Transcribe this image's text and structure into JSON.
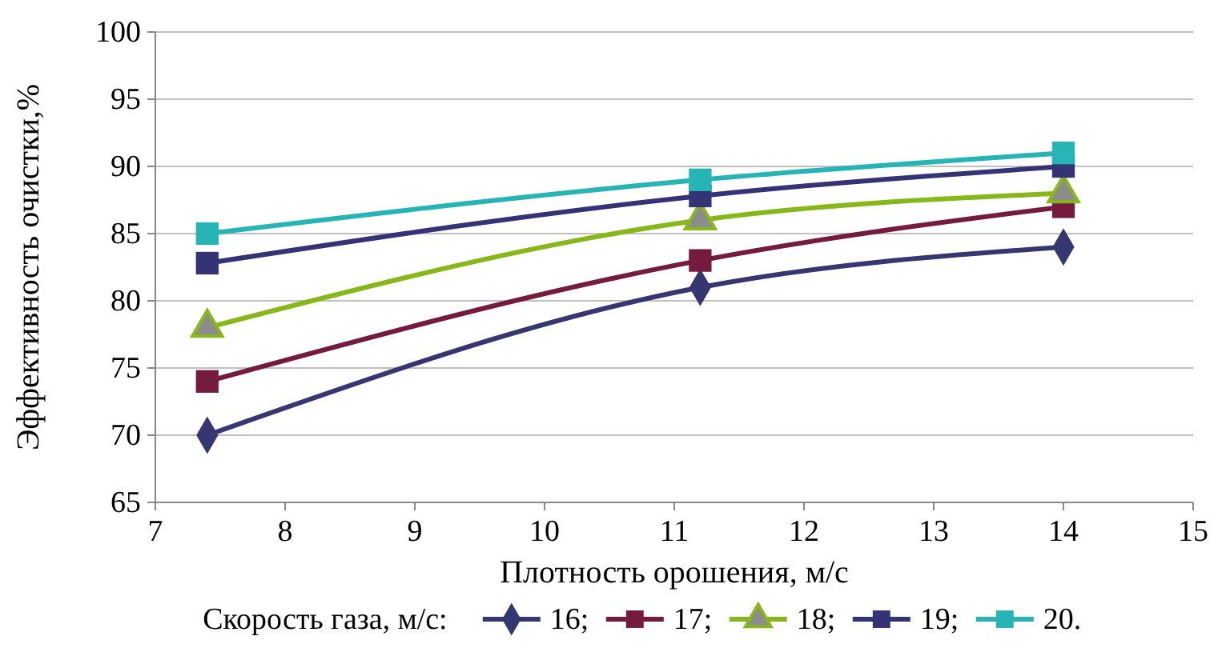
{
  "chart_data": {
    "type": "line",
    "xlabel": "Плотность орошения, м/с",
    "ylabel": "Эффективность очистки,%",
    "legend_title": "Скорость газа, м/с:",
    "x": [
      7.4,
      11.2,
      14
    ],
    "xlim": [
      7,
      15
    ],
    "xticks": [
      7,
      8,
      9,
      10,
      11,
      12,
      13,
      14,
      15
    ],
    "ylim": [
      65,
      100
    ],
    "yticks": [
      65,
      70,
      75,
      80,
      85,
      90,
      95,
      100
    ],
    "grid": "y",
    "legend": "bottom",
    "line_style": "solid",
    "series": [
      {
        "name": "16;",
        "color": "#363670",
        "marker": "diamond",
        "values": [
          70,
          81,
          84
        ]
      },
      {
        "name": "17;",
        "color": "#751c3e",
        "marker": "square",
        "values": [
          74,
          83,
          87
        ]
      },
      {
        "name": "18;",
        "color": "#86b81a",
        "marker": "triangle",
        "values": [
          78,
          86,
          88
        ]
      },
      {
        "name": "19;",
        "color": "#333376",
        "marker": "square",
        "values": [
          82.8,
          87.8,
          90
        ]
      },
      {
        "name": "20.",
        "color": "#26b4b4",
        "marker": "square",
        "values": [
          85,
          89,
          91
        ]
      }
    ]
  }
}
